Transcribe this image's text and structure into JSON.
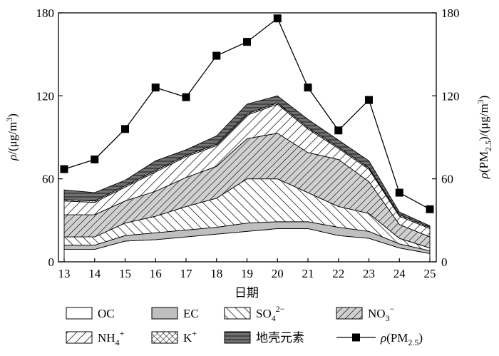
{
  "chart_data": {
    "type": "area",
    "x_ticks": [
      "13",
      "14",
      "15",
      "16",
      "17",
      "18",
      "19",
      "20",
      "21",
      "22",
      "23",
      "24",
      "25"
    ],
    "xlabel": "日期",
    "ylabel_left": {
      "rho": "ρ",
      "rest": "/(μg/m",
      "sup": "3",
      "close": ")"
    },
    "ylabel_right": {
      "rho": "ρ",
      "pm": "(PM",
      "sub": "2.5",
      "rest": ")/(μg/m",
      "sup": "3",
      "close": ")"
    },
    "y_ticks": [
      "0",
      "60",
      "120",
      "180"
    ],
    "ylim": [
      0,
      180
    ],
    "x": [
      13,
      14,
      15,
      16,
      17,
      18,
      19,
      20,
      21,
      22,
      23,
      24,
      25
    ],
    "stack_order": [
      "OC",
      "EC",
      "SO4",
      "NO3",
      "NH4",
      "K",
      "crustal"
    ],
    "series": [
      {
        "key": "OC",
        "values": [
          9,
          9,
          15,
          16,
          18,
          20,
          22,
          24,
          24,
          19,
          17,
          10,
          6
        ],
        "color": "#ffffff",
        "pattern": "none"
      },
      {
        "key": "EC",
        "values": [
          3,
          3,
          4,
          5,
          5,
          5,
          6,
          5,
          5,
          6,
          5,
          3,
          2
        ],
        "color": "#bfbfbf",
        "pattern": "none"
      },
      {
        "key": "SO4",
        "values": [
          6,
          6,
          9,
          12,
          17,
          21,
          32,
          31,
          21,
          15,
          13,
          4,
          2
        ],
        "color": "#ffffff",
        "pattern": "diag-fwd"
      },
      {
        "key": "NO3",
        "values": [
          16,
          16,
          16,
          18,
          21,
          23,
          29,
          33,
          29,
          34,
          23,
          10,
          8
        ],
        "color": "#d0d0d0",
        "pattern": "diag-back"
      },
      {
        "key": "NH4",
        "values": [
          10,
          9,
          10,
          14,
          15,
          15,
          17,
          21,
          17,
          8,
          9,
          6,
          6
        ],
        "color": "#ffffff",
        "pattern": "diag-back"
      },
      {
        "key": "K",
        "values": [
          1,
          1,
          1,
          1,
          1,
          1,
          1,
          1,
          1,
          1,
          1,
          1,
          1
        ],
        "color": "#ffffff",
        "pattern": "cross"
      },
      {
        "key": "crustal",
        "values": [
          7,
          6,
          4,
          7,
          4,
          6,
          7,
          5,
          6,
          5,
          5,
          2,
          1
        ],
        "color": "#707070",
        "pattern": "hstripe"
      }
    ],
    "pm25": {
      "values": [
        67,
        74,
        96,
        126,
        119,
        149,
        159,
        176,
        126,
        95,
        117,
        50,
        38
      ]
    },
    "legend": [
      {
        "key": "OC",
        "label": "OC"
      },
      {
        "key": "EC",
        "label": "EC"
      },
      {
        "key": "SO4",
        "label": "SO",
        "sub": "4",
        "sup": "2−"
      },
      {
        "key": "NO3",
        "label": "NO",
        "sub": "3",
        "sup": "−"
      },
      {
        "key": "NH4",
        "label": "NH",
        "sub": "4",
        "sup": "+"
      },
      {
        "key": "K",
        "label": "K",
        "sup": "+"
      },
      {
        "key": "crustal",
        "label": "地壳元素"
      },
      {
        "key": "pm25",
        "label": "ρ(PM",
        "sub": "2.5",
        "close": ")"
      }
    ]
  }
}
